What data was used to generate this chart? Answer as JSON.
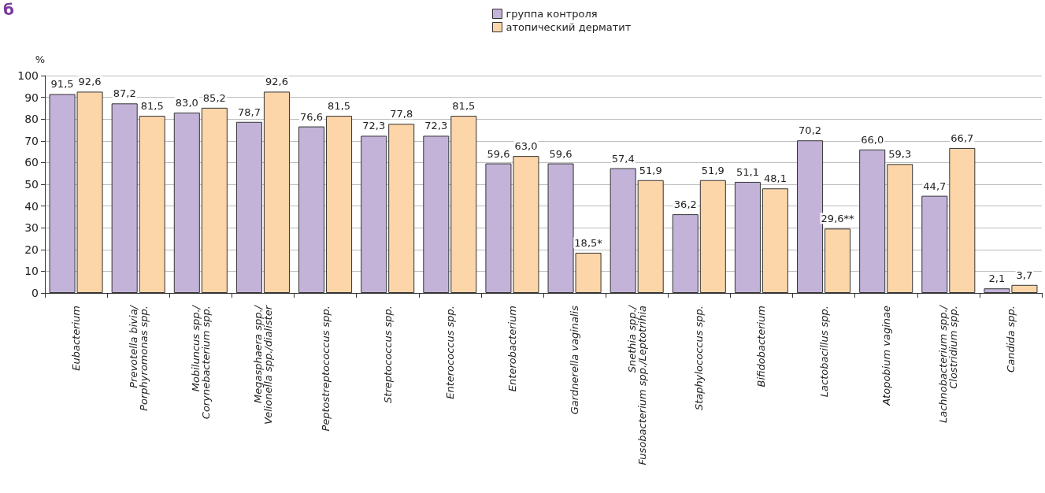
{
  "chart_data": {
    "type": "bar",
    "ylabel": "%",
    "annotations": [
      "б"
    ],
    "categories": [
      "Eubacterium",
      "Prevotella bivia/\nPorphyromonas spp.",
      "Mobiluncus spp./\nCorynebacterium spp.",
      "Megasphaera spp./\nVelionella spp./dialister",
      "Peptostreptococcus spp.",
      "Streptococcus spp.",
      "Enterococcus spp.",
      "Enterobacterium",
      "Gardnerella vaginalis",
      "Snethia spp./\nFusobacterium spp./Leptotrihia",
      "Staphylococcus spp.",
      "Bifidobacterium",
      "Lactobacillus spp.",
      "Atopobium vaginae",
      "Lachnobacterium spp./\nClostridium spp.",
      "Candida spp."
    ],
    "series": [
      {
        "name": "группа контроля",
        "color": "#c3b3d9",
        "values": [
          91.5,
          87.2,
          83.0,
          78.7,
          76.6,
          72.3,
          72.3,
          59.6,
          59.6,
          57.4,
          36.2,
          51.1,
          70.2,
          66.0,
          44.7,
          2.1
        ],
        "value_labels": [
          "91,5",
          "87,2",
          "83,0",
          "78,7",
          "76,6",
          "72,3",
          "72,3",
          "59,6",
          "59,6",
          "57,4",
          "36,2",
          "51,1",
          "70,2",
          "66,0",
          "44,7",
          "2,1"
        ]
      },
      {
        "name": "атопический дерматит",
        "color": "#fcd5a9",
        "values": [
          92.6,
          81.5,
          85.2,
          92.6,
          81.5,
          77.8,
          81.5,
          63.0,
          18.5,
          51.9,
          51.9,
          48.1,
          29.6,
          59.3,
          66.7,
          3.7
        ],
        "value_labels": [
          "92,6",
          "81,5",
          "85,2",
          "92,6",
          "81,5",
          "77,8",
          "81,5",
          "63,0",
          "18,5*",
          "51,9",
          "51,9",
          "48,1",
          "29,6**",
          "59,3",
          "66,7",
          "3,7"
        ]
      }
    ],
    "ylim": [
      0,
      100
    ],
    "yticks": [
      0,
      10,
      20,
      30,
      40,
      50,
      60,
      70,
      80,
      90,
      100
    ],
    "grid": "y",
    "legend": "top"
  }
}
